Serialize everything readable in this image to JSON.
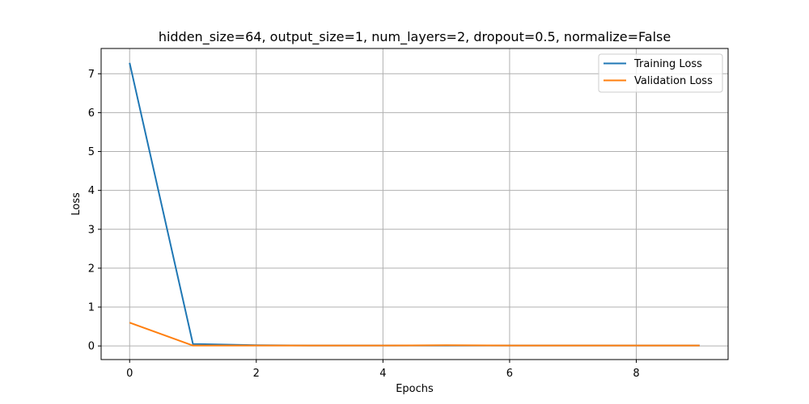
{
  "chart_data": {
    "type": "line",
    "title": "hidden_size=64, output_size=1, num_layers=2, dropout=0.5, normalize=False",
    "xlabel": "Epochs",
    "ylabel": "Loss",
    "x": [
      0,
      1,
      2,
      3,
      4,
      5,
      6,
      7,
      8,
      9
    ],
    "series": [
      {
        "name": "Training Loss",
        "color": "#1f77b4",
        "values": [
          7.28,
          0.05,
          0.02,
          0.01,
          0.01,
          0.01,
          0.01,
          0.01,
          0.01,
          0.01
        ]
      },
      {
        "name": "Validation Loss",
        "color": "#ff7f0e",
        "values": [
          0.6,
          0.01,
          0.01,
          0.01,
          0.01,
          0.02,
          0.01,
          0.01,
          0.01,
          0.01
        ]
      }
    ],
    "xlim": [
      -0.45,
      9.45
    ],
    "ylim": [
      -0.35,
      7.65
    ],
    "xticks": [
      0,
      2,
      4,
      6,
      8
    ],
    "yticks": [
      0,
      1,
      2,
      3,
      4,
      5,
      6,
      7
    ],
    "grid": true,
    "legend_position": "top-right"
  }
}
